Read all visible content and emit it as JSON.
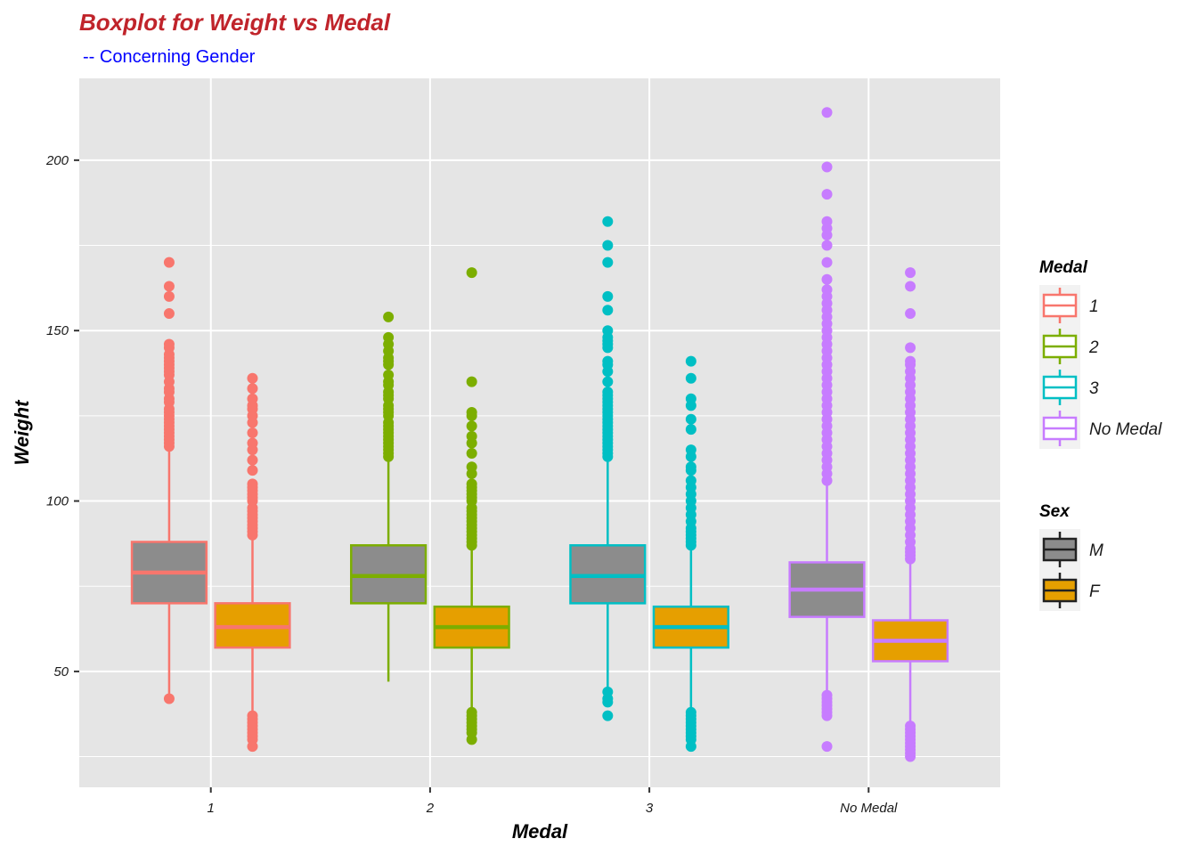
{
  "chart_data": {
    "type": "boxplot",
    "title": "Boxplot for Weight vs Medal",
    "subtitle": "-- Concerning Gender",
    "xlabel": "Medal",
    "ylabel": "Weight",
    "categories": [
      "1",
      "2",
      "3",
      "No Medal"
    ],
    "ylim": [
      16,
      224
    ],
    "yticks": [
      50,
      100,
      150,
      200
    ],
    "legend_fill_title": "Sex",
    "legend_color_title": "Medal",
    "colors": {
      "1": "#f8766d",
      "2": "#7cae00",
      "3": "#00bfc4",
      "No Medal": "#c77cff",
      "M": "#8c8c8c",
      "F": "#e69f00"
    },
    "title_color": "#c0242b",
    "subtitle_color": "#0000ff",
    "series": [
      {
        "name": "M",
        "boxes": [
          {
            "medal": "1",
            "q1": 70,
            "median": 79,
            "q3": 88,
            "whisker_low": 43,
            "whisker_high": 116,
            "outliers": [
              42,
              116,
              117,
              118,
              119,
              120,
              121,
              122,
              123,
              124,
              125,
              126,
              127,
              129,
              130,
              132,
              133,
              135,
              137,
              138,
              139,
              140,
              141,
              142,
              143,
              145,
              146,
              155,
              160,
              163,
              170
            ]
          },
          {
            "medal": "2",
            "q1": 70,
            "median": 78,
            "q3": 87,
            "whisker_low": 47,
            "whisker_high": 113,
            "outliers": [
              113,
              114,
              115,
              116,
              117,
              118,
              119,
              120,
              121,
              122,
              123,
              125,
              126,
              127,
              128,
              130,
              131,
              132,
              134,
              135,
              137,
              140,
              141,
              142,
              144,
              146,
              148,
              154
            ]
          },
          {
            "medal": "3",
            "q1": 70,
            "median": 78,
            "q3": 87,
            "whisker_low": 42,
            "whisker_high": 113,
            "outliers": [
              37,
              41,
              42,
              44,
              113,
              114,
              115,
              116,
              117,
              118,
              119,
              120,
              121,
              122,
              123,
              124,
              125,
              126,
              127,
              128,
              129,
              130,
              131,
              132,
              135,
              138,
              140,
              141,
              145,
              146,
              147,
              148,
              150,
              156,
              160,
              170,
              175,
              182
            ]
          },
          {
            "medal": "No Medal",
            "q1": 66,
            "median": 74,
            "q3": 82,
            "whisker_low": 44,
            "whisker_high": 106,
            "outliers": [
              28,
              37,
              38,
              39,
              40,
              41,
              42,
              43,
              106,
              108,
              110,
              112,
              114,
              116,
              118,
              120,
              122,
              124,
              126,
              128,
              130,
              132,
              134,
              136,
              138,
              140,
              142,
              144,
              146,
              148,
              150,
              152,
              154,
              156,
              158,
              160,
              162,
              165,
              170,
              175,
              178,
              180,
              182,
              190,
              198,
              214
            ]
          }
        ]
      },
      {
        "name": "F",
        "boxes": [
          {
            "medal": "1",
            "q1": 57,
            "median": 63,
            "q3": 70,
            "whisker_low": 37,
            "whisker_high": 90,
            "outliers": [
              28,
              30,
              31,
              32,
              33,
              34,
              35,
              36,
              37,
              90,
              91,
              92,
              93,
              94,
              95,
              96,
              97,
              98,
              100,
              101,
              102,
              103,
              104,
              105,
              109,
              112,
              115,
              117,
              120,
              123,
              125,
              127,
              128,
              130,
              133,
              136
            ]
          },
          {
            "medal": "2",
            "q1": 57,
            "median": 63,
            "q3": 69,
            "whisker_low": 38,
            "whisker_high": 87,
            "outliers": [
              30,
              32,
              33,
              34,
              35,
              36,
              37,
              38,
              87,
              88,
              89,
              90,
              91,
              92,
              93,
              94,
              95,
              96,
              97,
              98,
              100,
              101,
              102,
              103,
              104,
              105,
              108,
              110,
              114,
              117,
              119,
              122,
              125,
              126,
              135,
              167
            ]
          },
          {
            "medal": "3",
            "q1": 57,
            "median": 63,
            "q3": 69,
            "whisker_low": 38,
            "whisker_high": 87,
            "outliers": [
              28,
              30,
              31,
              32,
              33,
              34,
              35,
              36,
              37,
              38,
              87,
              88,
              89,
              90,
              91,
              92,
              94,
              96,
              98,
              100,
              102,
              104,
              106,
              109,
              110,
              113,
              115,
              121,
              124,
              128,
              130,
              136,
              141
            ]
          },
          {
            "medal": "No Medal",
            "q1": 53,
            "median": 59,
            "q3": 65,
            "whisker_low": 34,
            "whisker_high": 83,
            "outliers": [
              25,
              26,
              27,
              28,
              29,
              30,
              31,
              32,
              33,
              34,
              83,
              84,
              85,
              86,
              88,
              90,
              92,
              94,
              96,
              98,
              100,
              102,
              104,
              106,
              108,
              110,
              112,
              114,
              116,
              118,
              120,
              122,
              124,
              126,
              128,
              130,
              132,
              134,
              136,
              138,
              140,
              141,
              145,
              155,
              163,
              167
            ]
          }
        ]
      }
    ]
  }
}
